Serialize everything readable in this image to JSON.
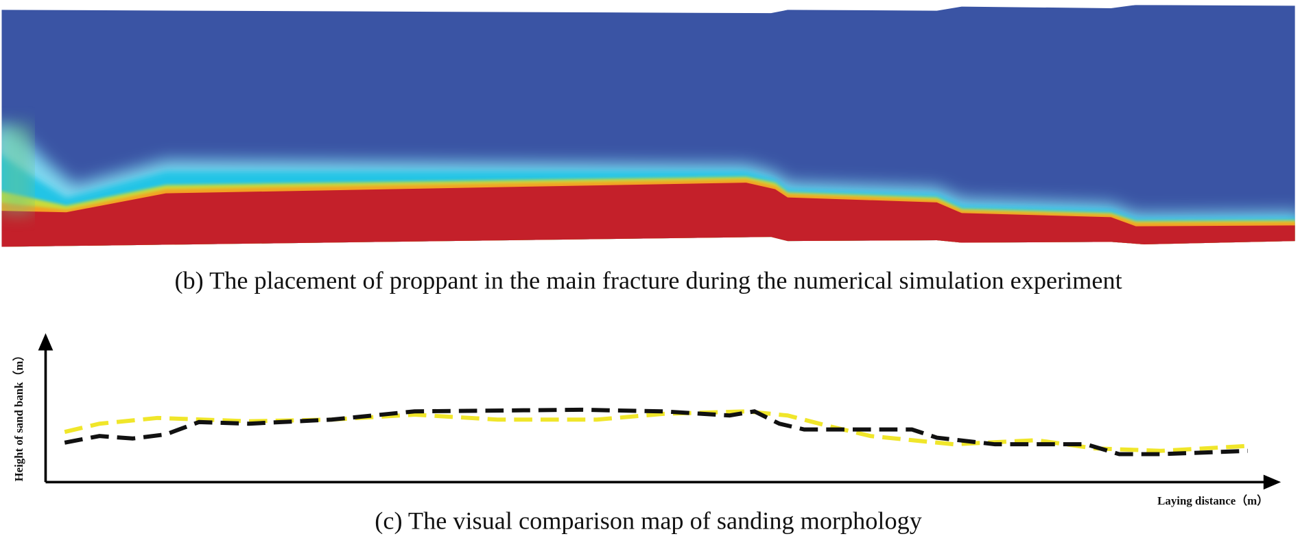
{
  "figure_b": {
    "caption": "(b) The placement of proppant in the main fracture during the numerical simulation experiment"
  },
  "figure_c": {
    "caption": "(c) The visual comparison map of sanding morphology",
    "y_axis_label": "Height of sand bank（m）",
    "x_axis_label": "Laying distance（m）"
  }
}
